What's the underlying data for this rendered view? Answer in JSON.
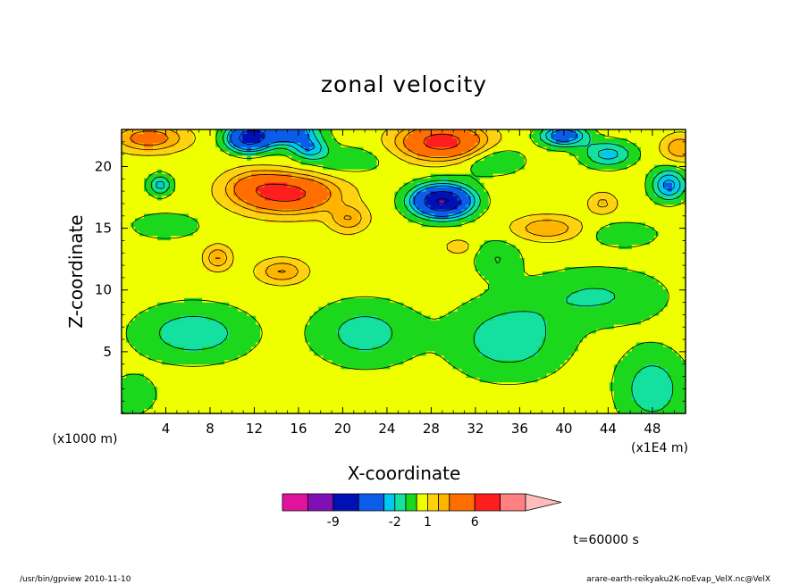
{
  "footer": {
    "left": "/usr/bin/gpview   2010-11-10",
    "right": "arare-earth-reikyaku2K-noEvap_VelX.nc@VelX"
  },
  "chart_data": {
    "type": "heatmap",
    "title": "zonal velocity",
    "xlabel": "X-coordinate",
    "ylabel": "Z-coordinate",
    "x_unit_label": "(x1E4 m)",
    "y_unit_label": "(x1000 m)",
    "time_label": "t=60000 s",
    "xlim": [
      0,
      51
    ],
    "ylim": [
      0,
      23
    ],
    "x_ticks": [
      4,
      8,
      12,
      16,
      20,
      24,
      28,
      32,
      36,
      40,
      44,
      48
    ],
    "y_ticks": [
      5,
      10,
      15,
      20
    ],
    "colorbar": {
      "levels": [
        -12,
        -9,
        -6,
        -3,
        -2,
        -1,
        0,
        1,
        2,
        3,
        6,
        9,
        12
      ],
      "labeled_ticks": [
        -9,
        -2,
        1,
        6
      ],
      "tick_labels": [
        "-9",
        "-2",
        "1",
        "6"
      ],
      "colors": [
        "#e0149c",
        "#8010b4",
        "#0010b4",
        "#0b5ce8",
        "#00c8f0",
        "#14e0a0",
        "#1cd81c",
        "#f0ff00",
        "#ffd210",
        "#ffb400",
        "#ff6e00",
        "#ff1e1e",
        "#ff8080",
        "#ffbcbc"
      ],
      "extend": "max"
    },
    "field": {
      "base": 0.5,
      "blobs": [
        {
          "x": 15.0,
          "z": 17.8,
          "sx": 4.0,
          "sz": 1.4,
          "a": 6.5
        },
        {
          "x": 12.0,
          "z": 18.5,
          "sx": 2.5,
          "sz": 1.2,
          "a": 2.0
        },
        {
          "x": 20.5,
          "z": 15.8,
          "sx": 1.6,
          "sz": 1.0,
          "a": 2.5
        },
        {
          "x": 14.5,
          "z": 11.5,
          "sx": 2.0,
          "sz": 0.9,
          "a": 2.6
        },
        {
          "x": 8.7,
          "z": 12.6,
          "sx": 1.1,
          "sz": 0.9,
          "a": 2.6
        },
        {
          "x": 29.0,
          "z": 22.0,
          "sx": 3.5,
          "sz": 1.3,
          "a": 7.0
        },
        {
          "x": 2.5,
          "z": 22.3,
          "sx": 3.0,
          "sz": 1.0,
          "a": 3.5
        },
        {
          "x": 38.5,
          "z": 15.0,
          "sx": 2.8,
          "sz": 0.9,
          "a": 2.5
        },
        {
          "x": 43.5,
          "z": 17.0,
          "sx": 1.2,
          "sz": 0.8,
          "a": 1.8
        },
        {
          "x": 50.5,
          "z": 21.5,
          "sx": 1.5,
          "sz": 1.0,
          "a": 2.5
        },
        {
          "x": 30.5,
          "z": 13.5,
          "sx": 1.2,
          "sz": 0.6,
          "a": 1.2
        },
        {
          "x": 29.0,
          "z": 17.2,
          "sx": 2.5,
          "sz": 1.2,
          "a": -10.0
        },
        {
          "x": 11.5,
          "z": 22.3,
          "sx": 1.8,
          "sz": 1.0,
          "a": -8.0
        },
        {
          "x": 15.0,
          "z": 22.8,
          "sx": 2.5,
          "sz": 1.0,
          "a": -5.5
        },
        {
          "x": 17.0,
          "z": 21.5,
          "sx": 1.5,
          "sz": 0.8,
          "a": -3.0
        },
        {
          "x": 40.0,
          "z": 22.5,
          "sx": 2.0,
          "sz": 0.8,
          "a": -5.0
        },
        {
          "x": 44.0,
          "z": 21.0,
          "sx": 2.2,
          "sz": 1.0,
          "a": -3.0
        },
        {
          "x": 49.5,
          "z": 18.5,
          "sx": 1.5,
          "sz": 1.2,
          "a": -4.0
        },
        {
          "x": 3.5,
          "z": 18.5,
          "sx": 1.0,
          "sz": 0.8,
          "a": -3.0
        },
        {
          "x": 6.5,
          "z": 6.5,
          "sx": 5.0,
          "sz": 2.2,
          "a": -2.2
        },
        {
          "x": 22.0,
          "z": 6.5,
          "sx": 4.5,
          "sz": 2.5,
          "a": -2.0
        },
        {
          "x": 35.0,
          "z": 6.0,
          "sx": 5.0,
          "sz": 3.0,
          "a": -2.2
        },
        {
          "x": 43.0,
          "z": 9.5,
          "sx": 6.0,
          "sz": 2.2,
          "a": -1.6
        },
        {
          "x": 48.0,
          "z": 2.0,
          "sx": 3.0,
          "sz": 3.0,
          "a": -2.2
        },
        {
          "x": 34.0,
          "z": 12.5,
          "sx": 2.0,
          "sz": 1.5,
          "a": -1.5
        },
        {
          "x": 4.0,
          "z": 15.2,
          "sx": 3.0,
          "sz": 1.0,
          "a": -1.4
        },
        {
          "x": 20.0,
          "z": 20.5,
          "sx": 4.0,
          "sz": 1.2,
          "a": -1.2
        },
        {
          "x": 33.5,
          "z": 20.5,
          "sx": 3.0,
          "sz": 1.2,
          "a": -1.5
        },
        {
          "x": 45.5,
          "z": 14.5,
          "sx": 3.0,
          "sz": 1.0,
          "a": -1.3
        },
        {
          "x": 1.0,
          "z": 1.5,
          "sx": 2.0,
          "sz": 1.5,
          "a": -1.5
        }
      ]
    }
  }
}
